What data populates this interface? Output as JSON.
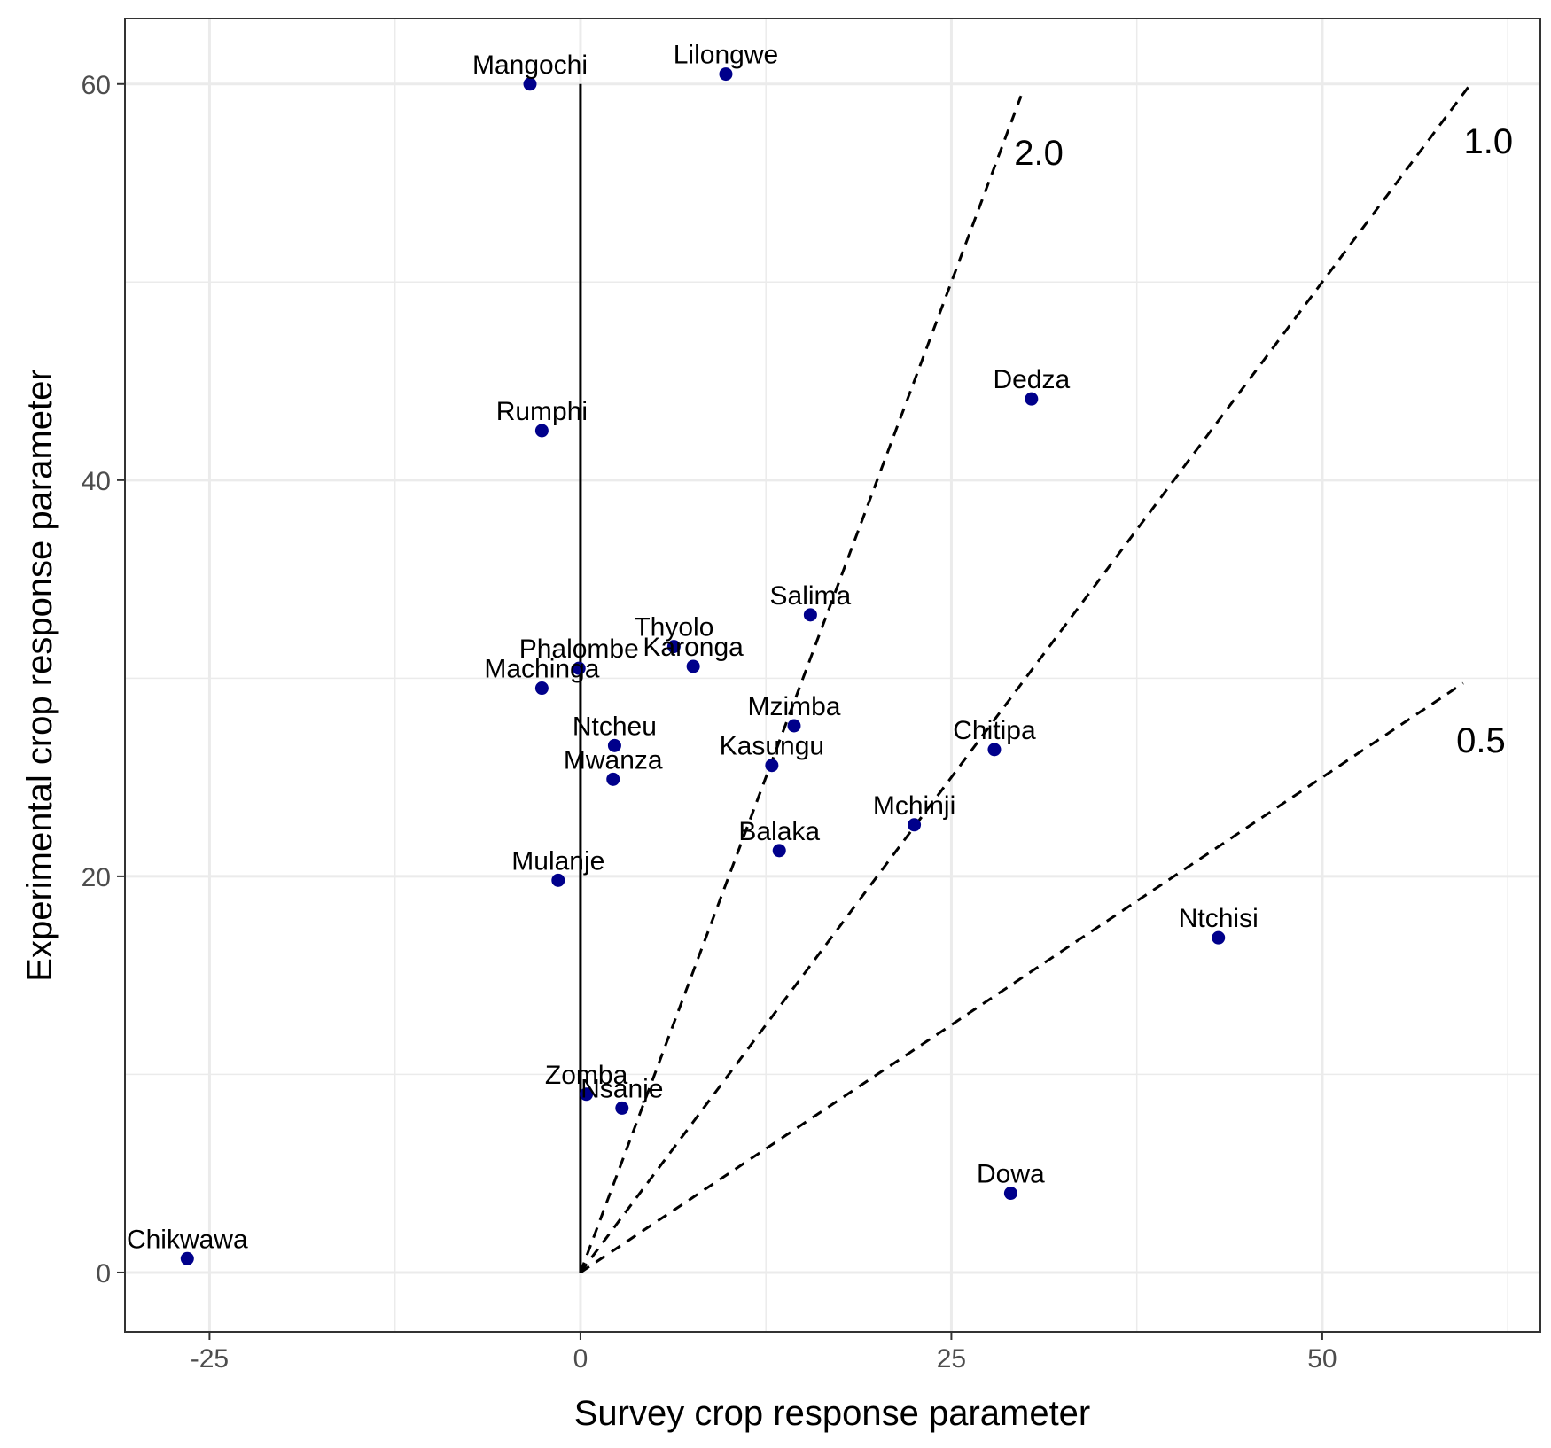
{
  "chart_data": {
    "type": "scatter",
    "xlabel": "Survey crop response parameter",
    "ylabel": "Experimental crop response parameter",
    "xlim": [
      -30.7,
      64.7
    ],
    "ylim": [
      -3.0,
      63.3
    ],
    "x_ticks": [
      -25,
      0,
      25,
      50
    ],
    "x_tick_labels": [
      "-25",
      "0",
      "25",
      "50"
    ],
    "y_ticks": [
      0,
      20,
      40,
      60
    ],
    "y_tick_labels": [
      "0",
      "20",
      "40",
      "60"
    ],
    "x_minor_ticks": [
      -12.5,
      12.5,
      37.5,
      62.5
    ],
    "y_minor_ticks": [
      10,
      30,
      50
    ],
    "grid": true,
    "point_color": "#00008b",
    "points": [
      {
        "name": "Mangochi",
        "x": -3.4,
        "y": 60.0
      },
      {
        "name": "Lilongwe",
        "x": 9.8,
        "y": 60.5
      },
      {
        "name": "Rumphi",
        "x": -2.6,
        "y": 42.5
      },
      {
        "name": "Dedza",
        "x": 30.4,
        "y": 44.1
      },
      {
        "name": "Salima",
        "x": 15.5,
        "y": 33.2
      },
      {
        "name": "Thyolo",
        "x": 6.3,
        "y": 31.6
      },
      {
        "name": "Karonga",
        "x": 7.6,
        "y": 30.6
      },
      {
        "name": "Phalombe",
        "x": -0.1,
        "y": 30.5
      },
      {
        "name": "Machinga",
        "x": -2.6,
        "y": 29.5
      },
      {
        "name": "Mzimba",
        "x": 14.4,
        "y": 27.6
      },
      {
        "name": "Ntcheu",
        "x": 2.3,
        "y": 26.6
      },
      {
        "name": "Chitipa",
        "x": 27.9,
        "y": 26.4
      },
      {
        "name": "Kasungu",
        "x": 12.9,
        "y": 25.6
      },
      {
        "name": "Mwanza",
        "x": 2.2,
        "y": 24.9
      },
      {
        "name": "Mchinji",
        "x": 22.5,
        "y": 22.6
      },
      {
        "name": "Balaka",
        "x": 13.4,
        "y": 21.3
      },
      {
        "name": "Mulanje",
        "x": -1.5,
        "y": 19.8
      },
      {
        "name": "Ntchisi",
        "x": 43.0,
        "y": 16.9
      },
      {
        "name": "Zomba",
        "x": 0.4,
        "y": 9.0
      },
      {
        "name": "Nsanje",
        "x": 2.8,
        "y": 8.3
      },
      {
        "name": "Dowa",
        "x": 29.0,
        "y": 4.0
      },
      {
        "name": "Chikwawa",
        "x": -26.5,
        "y": 0.7
      }
    ],
    "reference_lines": [
      {
        "label": "2.0",
        "slope": 2.0,
        "x_end": 29.7
      },
      {
        "label": "1.0",
        "slope": 1.0,
        "x_end": 60.0
      },
      {
        "label": "0.5",
        "slope": 0.5,
        "x_end": 59.5
      }
    ],
    "vertical_line": {
      "x": 0,
      "y_from": 0,
      "y_to": 60
    }
  }
}
